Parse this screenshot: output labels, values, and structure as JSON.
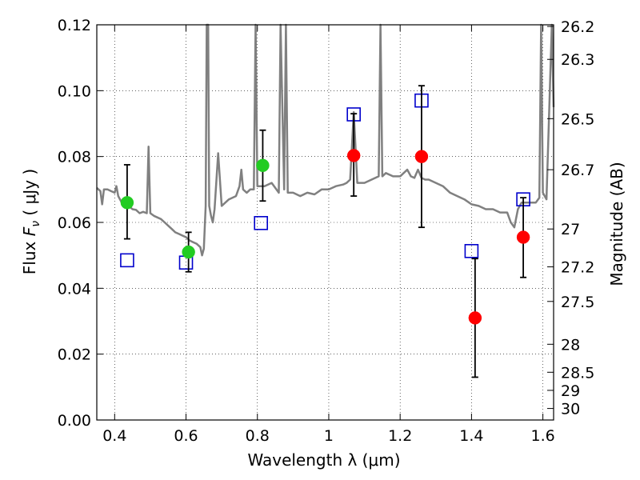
{
  "chart_data": {
    "type": "scatter",
    "title": "",
    "xlabel": "Wavelength  λ (μm)",
    "ylabel_left": {
      "prefix": "Flux  ",
      "symbol": "F",
      "subscript": "ν",
      "units": "  ( μJy )"
    },
    "ylabel_right": "Magnitude (AB)",
    "xlim": [
      0.35,
      1.63
    ],
    "ylim": [
      0.0,
      0.12
    ],
    "grid": true,
    "x_ticks": [
      {
        "value": 0.4,
        "label": "0.4"
      },
      {
        "value": 0.6,
        "label": "0.6"
      },
      {
        "value": 0.8,
        "label": "0.8"
      },
      {
        "value": 1.0,
        "label": "1"
      },
      {
        "value": 1.2,
        "label": "1.2"
      },
      {
        "value": 1.4,
        "label": "1.4"
      },
      {
        "value": 1.6,
        "label": "1.6"
      }
    ],
    "y_ticks": [
      {
        "value": 0.0,
        "label": "0.00"
      },
      {
        "value": 0.02,
        "label": "0.02"
      },
      {
        "value": 0.04,
        "label": "0.04"
      },
      {
        "value": 0.06,
        "label": "0.06"
      },
      {
        "value": 0.08,
        "label": "0.08"
      },
      {
        "value": 0.1,
        "label": "0.10"
      },
      {
        "value": 0.12,
        "label": "0.12"
      }
    ],
    "mag_ticks": [
      {
        "flux": 0.1195,
        "label": "26.2"
      },
      {
        "flux": 0.1095,
        "label": "26.3"
      },
      {
        "flux": 0.0915,
        "label": "26.5"
      },
      {
        "flux": 0.076,
        "label": "26.7"
      },
      {
        "flux": 0.058,
        "label": "27"
      },
      {
        "flux": 0.0465,
        "label": "27.2"
      },
      {
        "flux": 0.036,
        "label": "27.5"
      },
      {
        "flux": 0.023,
        "label": "28"
      },
      {
        "flux": 0.0145,
        "label": "28.5"
      },
      {
        "flux": 0.009,
        "label": "29"
      },
      {
        "flux": 0.0035,
        "label": "30"
      }
    ],
    "series": [
      {
        "name": "model spectrum",
        "kind": "line",
        "color": "#808080",
        "points": [
          [
            0.35,
            0.0705
          ],
          [
            0.36,
            0.0695
          ],
          [
            0.365,
            0.0655
          ],
          [
            0.37,
            0.07
          ],
          [
            0.38,
            0.07
          ],
          [
            0.39,
            0.0695
          ],
          [
            0.4,
            0.069
          ],
          [
            0.405,
            0.071
          ],
          [
            0.41,
            0.068
          ],
          [
            0.42,
            0.066
          ],
          [
            0.43,
            0.0655
          ],
          [
            0.44,
            0.065
          ],
          [
            0.45,
            0.064
          ],
          [
            0.46,
            0.0638
          ],
          [
            0.47,
            0.0628
          ],
          [
            0.48,
            0.0632
          ],
          [
            0.49,
            0.0628
          ],
          [
            0.495,
            0.083
          ],
          [
            0.5,
            0.0628
          ],
          [
            0.51,
            0.062
          ],
          [
            0.52,
            0.0615
          ],
          [
            0.53,
            0.061
          ],
          [
            0.54,
            0.06
          ],
          [
            0.55,
            0.059
          ],
          [
            0.56,
            0.058
          ],
          [
            0.57,
            0.057
          ],
          [
            0.58,
            0.0565
          ],
          [
            0.59,
            0.056
          ],
          [
            0.6,
            0.0555
          ],
          [
            0.61,
            0.0545
          ],
          [
            0.62,
            0.054
          ],
          [
            0.63,
            0.0535
          ],
          [
            0.64,
            0.0525
          ],
          [
            0.645,
            0.05
          ],
          [
            0.65,
            0.052
          ],
          [
            0.655,
            0.065
          ],
          [
            0.658,
            0.12
          ],
          [
            0.662,
            0.12
          ],
          [
            0.665,
            0.065
          ],
          [
            0.67,
            0.062
          ],
          [
            0.675,
            0.06
          ],
          [
            0.68,
            0.064
          ],
          [
            0.69,
            0.081
          ],
          [
            0.7,
            0.065
          ],
          [
            0.72,
            0.067
          ],
          [
            0.74,
            0.068
          ],
          [
            0.75,
            0.071
          ],
          [
            0.755,
            0.076
          ],
          [
            0.76,
            0.07
          ],
          [
            0.77,
            0.069
          ],
          [
            0.78,
            0.07
          ],
          [
            0.79,
            0.07
          ],
          [
            0.795,
            0.12
          ],
          [
            0.8,
            0.071
          ],
          [
            0.82,
            0.071
          ],
          [
            0.84,
            0.072
          ],
          [
            0.86,
            0.069
          ],
          [
            0.865,
            0.12
          ],
          [
            0.875,
            0.07
          ],
          [
            0.88,
            0.12
          ],
          [
            0.885,
            0.069
          ],
          [
            0.9,
            0.069
          ],
          [
            0.92,
            0.068
          ],
          [
            0.94,
            0.069
          ],
          [
            0.96,
            0.0685
          ],
          [
            0.98,
            0.07
          ],
          [
            1.0,
            0.07
          ],
          [
            1.02,
            0.071
          ],
          [
            1.04,
            0.0715
          ],
          [
            1.05,
            0.072
          ],
          [
            1.06,
            0.073
          ],
          [
            1.07,
            0.0935
          ],
          [
            1.08,
            0.072
          ],
          [
            1.1,
            0.072
          ],
          [
            1.12,
            0.073
          ],
          [
            1.14,
            0.074
          ],
          [
            1.145,
            0.12
          ],
          [
            1.15,
            0.074
          ],
          [
            1.16,
            0.075
          ],
          [
            1.18,
            0.074
          ],
          [
            1.2,
            0.074
          ],
          [
            1.22,
            0.076
          ],
          [
            1.23,
            0.074
          ],
          [
            1.24,
            0.0735
          ],
          [
            1.25,
            0.076
          ],
          [
            1.26,
            0.0735
          ],
          [
            1.27,
            0.073
          ],
          [
            1.28,
            0.073
          ],
          [
            1.3,
            0.072
          ],
          [
            1.32,
            0.071
          ],
          [
            1.34,
            0.069
          ],
          [
            1.36,
            0.068
          ],
          [
            1.38,
            0.067
          ],
          [
            1.4,
            0.0655
          ],
          [
            1.42,
            0.065
          ],
          [
            1.44,
            0.064
          ],
          [
            1.46,
            0.064
          ],
          [
            1.48,
            0.063
          ],
          [
            1.5,
            0.063
          ],
          [
            1.51,
            0.06
          ],
          [
            1.52,
            0.0585
          ],
          [
            1.53,
            0.064
          ],
          [
            1.54,
            0.066
          ],
          [
            1.55,
            0.066
          ],
          [
            1.56,
            0.066
          ],
          [
            1.57,
            0.066
          ],
          [
            1.58,
            0.066
          ],
          [
            1.59,
            0.0675
          ],
          [
            1.595,
            0.12
          ],
          [
            1.6,
            0.069
          ],
          [
            1.61,
            0.067
          ],
          [
            1.625,
            0.12
          ],
          [
            1.63,
            0.095
          ]
        ]
      },
      {
        "name": "green points",
        "kind": "circle",
        "color": "#22cc22",
        "points": [
          {
            "x": 0.435,
            "y": 0.066,
            "lo": 0.055,
            "hi": 0.0775
          },
          {
            "x": 0.607,
            "y": 0.051,
            "lo": 0.045,
            "hi": 0.057
          },
          {
            "x": 0.815,
            "y": 0.0773,
            "lo": 0.0665,
            "hi": 0.088
          }
        ]
      },
      {
        "name": "red points",
        "kind": "circle",
        "color": "#ff0000",
        "points": [
          {
            "x": 1.07,
            "y": 0.0803,
            "lo": 0.068,
            "hi": 0.093
          },
          {
            "x": 1.26,
            "y": 0.08,
            "lo": 0.0585,
            "hi": 0.1015
          },
          {
            "x": 1.41,
            "y": 0.031,
            "lo": 0.013,
            "hi": 0.049
          },
          {
            "x": 1.545,
            "y": 0.0555,
            "lo": 0.0433,
            "hi": 0.0675
          }
        ]
      },
      {
        "name": "blue squares",
        "kind": "square",
        "color": "#0000cc",
        "points": [
          {
            "x": 0.435,
            "y": 0.0485
          },
          {
            "x": 0.6,
            "y": 0.0478
          },
          {
            "x": 0.81,
            "y": 0.0598
          },
          {
            "x": 1.07,
            "y": 0.0928
          },
          {
            "x": 1.26,
            "y": 0.097
          },
          {
            "x": 1.4,
            "y": 0.0513
          },
          {
            "x": 1.545,
            "y": 0.067
          }
        ]
      }
    ]
  }
}
